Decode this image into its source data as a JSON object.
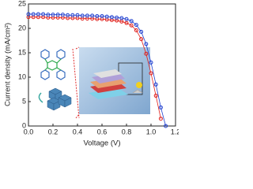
{
  "chart_data": {
    "type": "line",
    "x_label": "Voltage (V)",
    "y_label": "Current density (mA/cm²)",
    "x": [
      0,
      0.04,
      0.08,
      0.12,
      0.16,
      0.2,
      0.24,
      0.28,
      0.32,
      0.36,
      0.4,
      0.44,
      0.48,
      0.52,
      0.56,
      0.6,
      0.64,
      0.68,
      0.72,
      0.76,
      0.8,
      0.84,
      0.88,
      0.92,
      0.96,
      1.0,
      1.04,
      1.08,
      1.12
    ],
    "series": [
      {
        "color": "#e0201c",
        "values": [
          22.3,
          22.3,
          22.3,
          22.3,
          22.2,
          22.2,
          22.2,
          22.2,
          22.1,
          22.1,
          22.1,
          22.0,
          22.0,
          22.0,
          21.9,
          21.9,
          21.8,
          21.7,
          21.6,
          21.4,
          21.1,
          20.6,
          19.6,
          17.8,
          14.8,
          10.8,
          6.2,
          1.5,
          null
        ]
      },
      {
        "color": "#1f3fcf",
        "values": [
          22.9,
          22.9,
          22.9,
          22.9,
          22.8,
          22.8,
          22.8,
          22.8,
          22.7,
          22.7,
          22.7,
          22.6,
          22.6,
          22.6,
          22.5,
          22.5,
          22.4,
          22.3,
          22.2,
          22.1,
          21.9,
          21.5,
          20.7,
          19.3,
          16.8,
          13.0,
          8.5,
          3.8,
          0.0
        ]
      }
    ],
    "xlim": [
      0,
      1.2
    ],
    "ylim": [
      0,
      25
    ],
    "xticks": [
      {
        "value": 0,
        "label": "0.0"
      },
      0.2,
      0.4,
      0.6,
      0.8,
      {
        "value": 1,
        "label": "1.0"
      },
      1.2
    ],
    "yticks": [
      0,
      5,
      10,
      15,
      20,
      25
    ]
  }
}
